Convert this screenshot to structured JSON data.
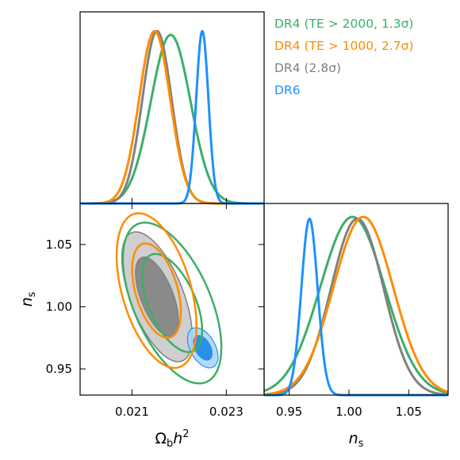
{
  "chart_data": [
    {
      "type": "line",
      "panel": "1D posterior",
      "xlabel": "",
      "ylabel": "",
      "xlim": [
        0.0199,
        0.0238
      ],
      "legend_placement": "top-right (outside panel)",
      "series": [
        {
          "name": "DR4 (TE > 2000, 1.3σ)",
          "color": "#3aaf6a",
          "mean": 0.02182,
          "sigma": 0.00042,
          "peak": 0.88
        },
        {
          "name": "DR4 (TE > 1000, 2.7σ)",
          "color": "#ff8c00",
          "mean": 0.02148,
          "sigma": 0.00033,
          "peak": 0.9
        },
        {
          "name": "DR4 (2.8σ)",
          "color": "#808080",
          "mean": 0.02153,
          "sigma": 0.00031,
          "peak": 0.9
        },
        {
          "name": "DR6",
          "color": "#1e90ff",
          "mean": 0.02249,
          "sigma": 0.00013,
          "peak": 0.9
        }
      ]
    },
    {
      "type": "contour",
      "panel": "2D posterior",
      "xlabel": "Ω_b h²",
      "ylabel": "n_s",
      "xlim": [
        0.0199,
        0.0238
      ],
      "ylim": [
        0.929,
        1.083
      ],
      "xticks": [
        0.021,
        0.023
      ],
      "xticklabels": [
        "0.021",
        "0.023"
      ],
      "yticks": [
        0.95,
        1.0,
        1.05
      ],
      "yticklabels": [
        "0.95",
        "1.00",
        "1.05"
      ],
      "series": [
        {
          "name": "DR4 (TE > 2000, 1.3σ)",
          "center": [
            0.02185,
            1.003
          ],
          "sigma": [
            0.00042,
            0.026
          ],
          "rho": -0.55,
          "filled": false
        },
        {
          "name": "DR4 (TE > 1000, 2.7σ)",
          "center": [
            0.02152,
            1.013
          ],
          "sigma": [
            0.00034,
            0.025
          ],
          "rho": -0.45,
          "filled": false
        },
        {
          "name": "DR4 (2.8σ)",
          "center": [
            0.02153,
            1.008
          ],
          "sigma": [
            0.0003,
            0.021
          ],
          "rho": -0.6,
          "filled": true
        },
        {
          "name": "DR6",
          "center": [
            0.0225,
            0.967
          ],
          "sigma": [
            0.00013,
            0.0065
          ],
          "rho": -0.45,
          "filled": true
        }
      ]
    },
    {
      "type": "line",
      "panel": "1D posterior",
      "xlabel": "n_s",
      "ylabel": "",
      "xlim": [
        0.929,
        1.083
      ],
      "xticks": [
        0.95,
        1.0,
        1.05
      ],
      "xticklabels": [
        "0.95",
        "1.00",
        "1.05"
      ],
      "series": [
        {
          "name": "DR4 (TE > 2000, 1.3σ)",
          "mean": 1.003,
          "sigma": 0.027,
          "peak": 0.93
        },
        {
          "name": "DR4 (TE > 1000, 2.7σ)",
          "mean": 1.012,
          "sigma": 0.025,
          "peak": 0.93
        },
        {
          "name": "DR4 (2.8σ)",
          "mean": 1.007,
          "sigma": 0.022,
          "peak": 0.92
        },
        {
          "name": "DR6",
          "mean": 0.967,
          "sigma": 0.0068,
          "peak": 0.92
        }
      ]
    }
  ],
  "legend": [
    {
      "label": "DR4 (TE > 2000, 1.3σ)",
      "color": "#3aaf6a"
    },
    {
      "label": "DR4 (TE > 1000, 2.7σ)",
      "color": "#ff8c00"
    },
    {
      "label": "DR4 (2.8σ)",
      "color": "#808080"
    },
    {
      "label": "DR6",
      "color": "#1e90ff"
    }
  ],
  "colors": {
    "green": "#3aaf6a",
    "orange": "#ff8c00",
    "gray": "#808080",
    "gray_fill_outer": "#cfcfcf",
    "gray_fill_inner": "#8a8a8a",
    "blue": "#1e90ff",
    "blue_fill_outer": "#a9d3f5",
    "blue_fill_inner": "#2a8fe8"
  }
}
